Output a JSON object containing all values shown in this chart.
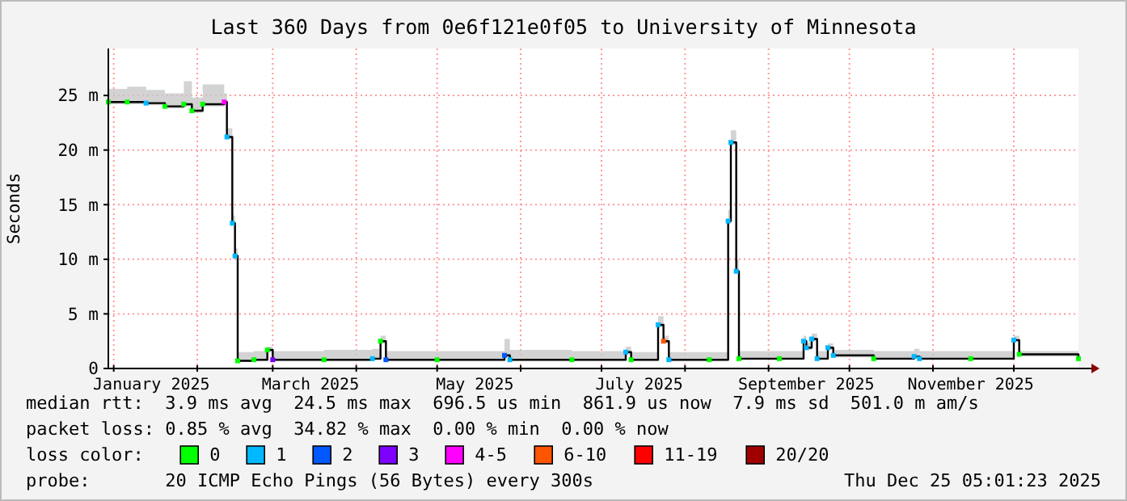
{
  "chart_data": {
    "type": "step",
    "title": "Last 360 Days from 0e6f121e0f05 to University of Minnesota",
    "ylabel": "Seconds",
    "legend_title": "loss color:",
    "legend": "bottom",
    "grid": true,
    "xlim": [
      "2024-12-30",
      "2025-12-25"
    ],
    "xticks": [
      {
        "value": "2025-01-01",
        "label": null
      },
      {
        "value": "2025-01-15",
        "label": "January 2025"
      },
      {
        "value": "2025-02-01",
        "label": null
      },
      {
        "value": "2025-03-01",
        "label": null
      },
      {
        "value": "2025-03-15",
        "label": "March 2025"
      },
      {
        "value": "2025-04-01",
        "label": null
      },
      {
        "value": "2025-05-01",
        "label": null
      },
      {
        "value": "2025-05-15",
        "label": "May 2025"
      },
      {
        "value": "2025-06-01",
        "label": null
      },
      {
        "value": "2025-07-01",
        "label": null
      },
      {
        "value": "2025-07-15",
        "label": "July 2025"
      },
      {
        "value": "2025-08-01",
        "label": null
      },
      {
        "value": "2025-09-01",
        "label": null
      },
      {
        "value": "2025-09-15",
        "label": "September 2025"
      },
      {
        "value": "2025-10-01",
        "label": null
      },
      {
        "value": "2025-11-01",
        "label": null
      },
      {
        "value": "2025-11-15",
        "label": "November 2025"
      },
      {
        "value": "2025-12-01",
        "label": null
      }
    ],
    "ylim": [
      0,
      29.3
    ],
    "yticks": [
      0,
      {
        "value": 5,
        "label": "5 m"
      },
      {
        "value": 10,
        "label": "10 m"
      },
      {
        "value": 15,
        "label": "15 m"
      },
      {
        "value": 20,
        "label": "20 m"
      },
      {
        "value": 25,
        "label": "25 m"
      }
    ],
    "series": [
      {
        "color": "#000000",
        "x": [
          "2024-12-30",
          "2025-01-06",
          "2025-01-13",
          "2025-01-20",
          "2025-01-27",
          "2025-01-30",
          "2025-02-03",
          "2025-02-11",
          "2025-02-12",
          "2025-02-14",
          "2025-02-15",
          "2025-02-16",
          "2025-02-22",
          "2025-02-27",
          "2025-03-01",
          "2025-03-20",
          "2025-04-07",
          "2025-04-10",
          "2025-04-12",
          "2025-05-01",
          "2025-05-26",
          "2025-05-28",
          "2025-06-20",
          "2025-07-10",
          "2025-07-12",
          "2025-07-22",
          "2025-07-24",
          "2025-07-26",
          "2025-08-10",
          "2025-08-17",
          "2025-08-18",
          "2025-08-20",
          "2025-08-21",
          "2025-09-05",
          "2025-09-14",
          "2025-09-15",
          "2025-09-17",
          "2025-09-19",
          "2025-09-23",
          "2025-09-25",
          "2025-10-10",
          "2025-10-25",
          "2025-10-27",
          "2025-11-15",
          "2025-12-01",
          "2025-12-03",
          "2025-12-25"
        ],
        "values": [
          24.4,
          24.4,
          24.3,
          24.0,
          24.2,
          23.6,
          24.2,
          24.4,
          21.2,
          13.3,
          10.3,
          0.7,
          0.8,
          1.7,
          0.8,
          0.8,
          0.9,
          2.5,
          0.8,
          0.8,
          1.2,
          0.8,
          0.8,
          1.5,
          0.8,
          4.0,
          2.5,
          0.8,
          0.8,
          13.5,
          20.7,
          8.9,
          0.9,
          0.9,
          2.5,
          1.9,
          2.7,
          0.9,
          1.9,
          1.2,
          0.9,
          1.1,
          0.9,
          0.9,
          2.6,
          1.3,
          0.9
        ],
        "lower": [
          24.2,
          24.2,
          24.1,
          23.8,
          24.0,
          23.4,
          24.0,
          24.2,
          21.0,
          13.1,
          10.1,
          0.6,
          0.7,
          1.5,
          0.7,
          0.7,
          0.8,
          2.3,
          0.7,
          0.7,
          1.0,
          0.7,
          0.7,
          1.3,
          0.7,
          3.8,
          2.3,
          0.7,
          0.7,
          13.3,
          20.5,
          8.7,
          0.8,
          0.8,
          2.3,
          1.7,
          2.5,
          0.8,
          1.7,
          1.0,
          0.8,
          0.9,
          0.8,
          0.8,
          2.4,
          1.1,
          0.8
        ],
        "upper": [
          25.6,
          25.8,
          25.5,
          25.2,
          26.3,
          24.8,
          26.0,
          25.2,
          22.0,
          14.0,
          11.0,
          1.5,
          1.6,
          2.0,
          1.6,
          1.7,
          1.8,
          3.0,
          1.6,
          1.6,
          2.7,
          1.7,
          1.6,
          2.0,
          1.5,
          4.8,
          3.0,
          1.5,
          1.5,
          14.5,
          21.8,
          10.0,
          1.6,
          1.6,
          3.0,
          2.4,
          3.2,
          1.6,
          2.3,
          1.7,
          1.6,
          1.8,
          1.6,
          1.6,
          3.0,
          1.6,
          1.2
        ]
      },
      {
        "type": "scatter",
        "marker": "square",
        "name": "0",
        "color": "#00ff00",
        "x": [
          "2024-12-30",
          "2025-01-06",
          "2025-01-20",
          "2025-01-27",
          "2025-01-30",
          "2025-02-03",
          "2025-02-16",
          "2025-02-22",
          "2025-02-27",
          "2025-03-20",
          "2025-04-10",
          "2025-05-01",
          "2025-06-20",
          "2025-07-12",
          "2025-08-10",
          "2025-08-21",
          "2025-09-05",
          "2025-10-10",
          "2025-11-15",
          "2025-12-03",
          "2025-12-25"
        ],
        "values": [
          24.4,
          24.4,
          24.0,
          24.2,
          23.6,
          24.2,
          0.7,
          0.8,
          1.7,
          0.8,
          2.5,
          0.8,
          0.8,
          0.8,
          0.8,
          0.9,
          0.9,
          0.9,
          0.9,
          1.3,
          0.9
        ]
      },
      {
        "type": "scatter",
        "marker": "square",
        "name": "1",
        "color": "#00b8ff",
        "x": [
          "2025-01-13",
          "2025-02-12",
          "2025-02-14",
          "2025-02-15",
          "2025-04-07",
          "2025-05-28",
          "2025-07-10",
          "2025-07-22",
          "2025-07-26",
          "2025-08-17",
          "2025-08-18",
          "2025-08-20",
          "2025-09-14",
          "2025-09-15",
          "2025-09-17",
          "2025-09-19",
          "2025-09-23",
          "2025-09-25",
          "2025-10-25",
          "2025-10-27",
          "2025-12-01"
        ],
        "values": [
          24.3,
          21.2,
          13.3,
          10.3,
          0.9,
          0.8,
          1.5,
          4.0,
          0.8,
          13.5,
          20.7,
          8.9,
          2.5,
          1.9,
          2.7,
          0.9,
          1.9,
          1.2,
          1.1,
          0.9,
          2.6
        ]
      },
      {
        "type": "scatter",
        "marker": "square",
        "name": "2",
        "color": "#0059ff",
        "x": [
          "2025-04-12",
          "2025-05-26"
        ],
        "values": [
          0.8,
          1.2
        ]
      },
      {
        "type": "scatter",
        "marker": "square",
        "name": "3",
        "color": "#7e00ff",
        "x": [
          "2025-03-01"
        ],
        "values": [
          0.8
        ]
      },
      {
        "type": "scatter",
        "marker": "square",
        "name": "4-5",
        "color": "#ff00ff",
        "x": [
          "2025-02-11"
        ],
        "values": [
          24.4
        ]
      },
      {
        "type": "scatter",
        "marker": "square",
        "name": "6-10",
        "color": "#ff5500",
        "x": [
          "2025-07-24"
        ],
        "values": [
          2.5
        ]
      },
      {
        "type": "scatter",
        "marker": "square",
        "name": "11-19",
        "color": "#ff0000"
      },
      {
        "type": "scatter",
        "marker": "square",
        "name": "20/20",
        "color": "#a10000"
      }
    ],
    "annotations": [
      "median rtt:  3.9 ms avg  24.5 ms max  696.5 us min  861.9 us now  7.9 ms sd  501.0 m am/s",
      "packet loss: 0.85 % avg  34.82 % max  0.00 % min  0.00 % now",
      "probe:       20 ICMP Echo Pings (56 Bytes) every 300s",
      "Thu Dec 25 05:01:23 2025"
    ]
  }
}
